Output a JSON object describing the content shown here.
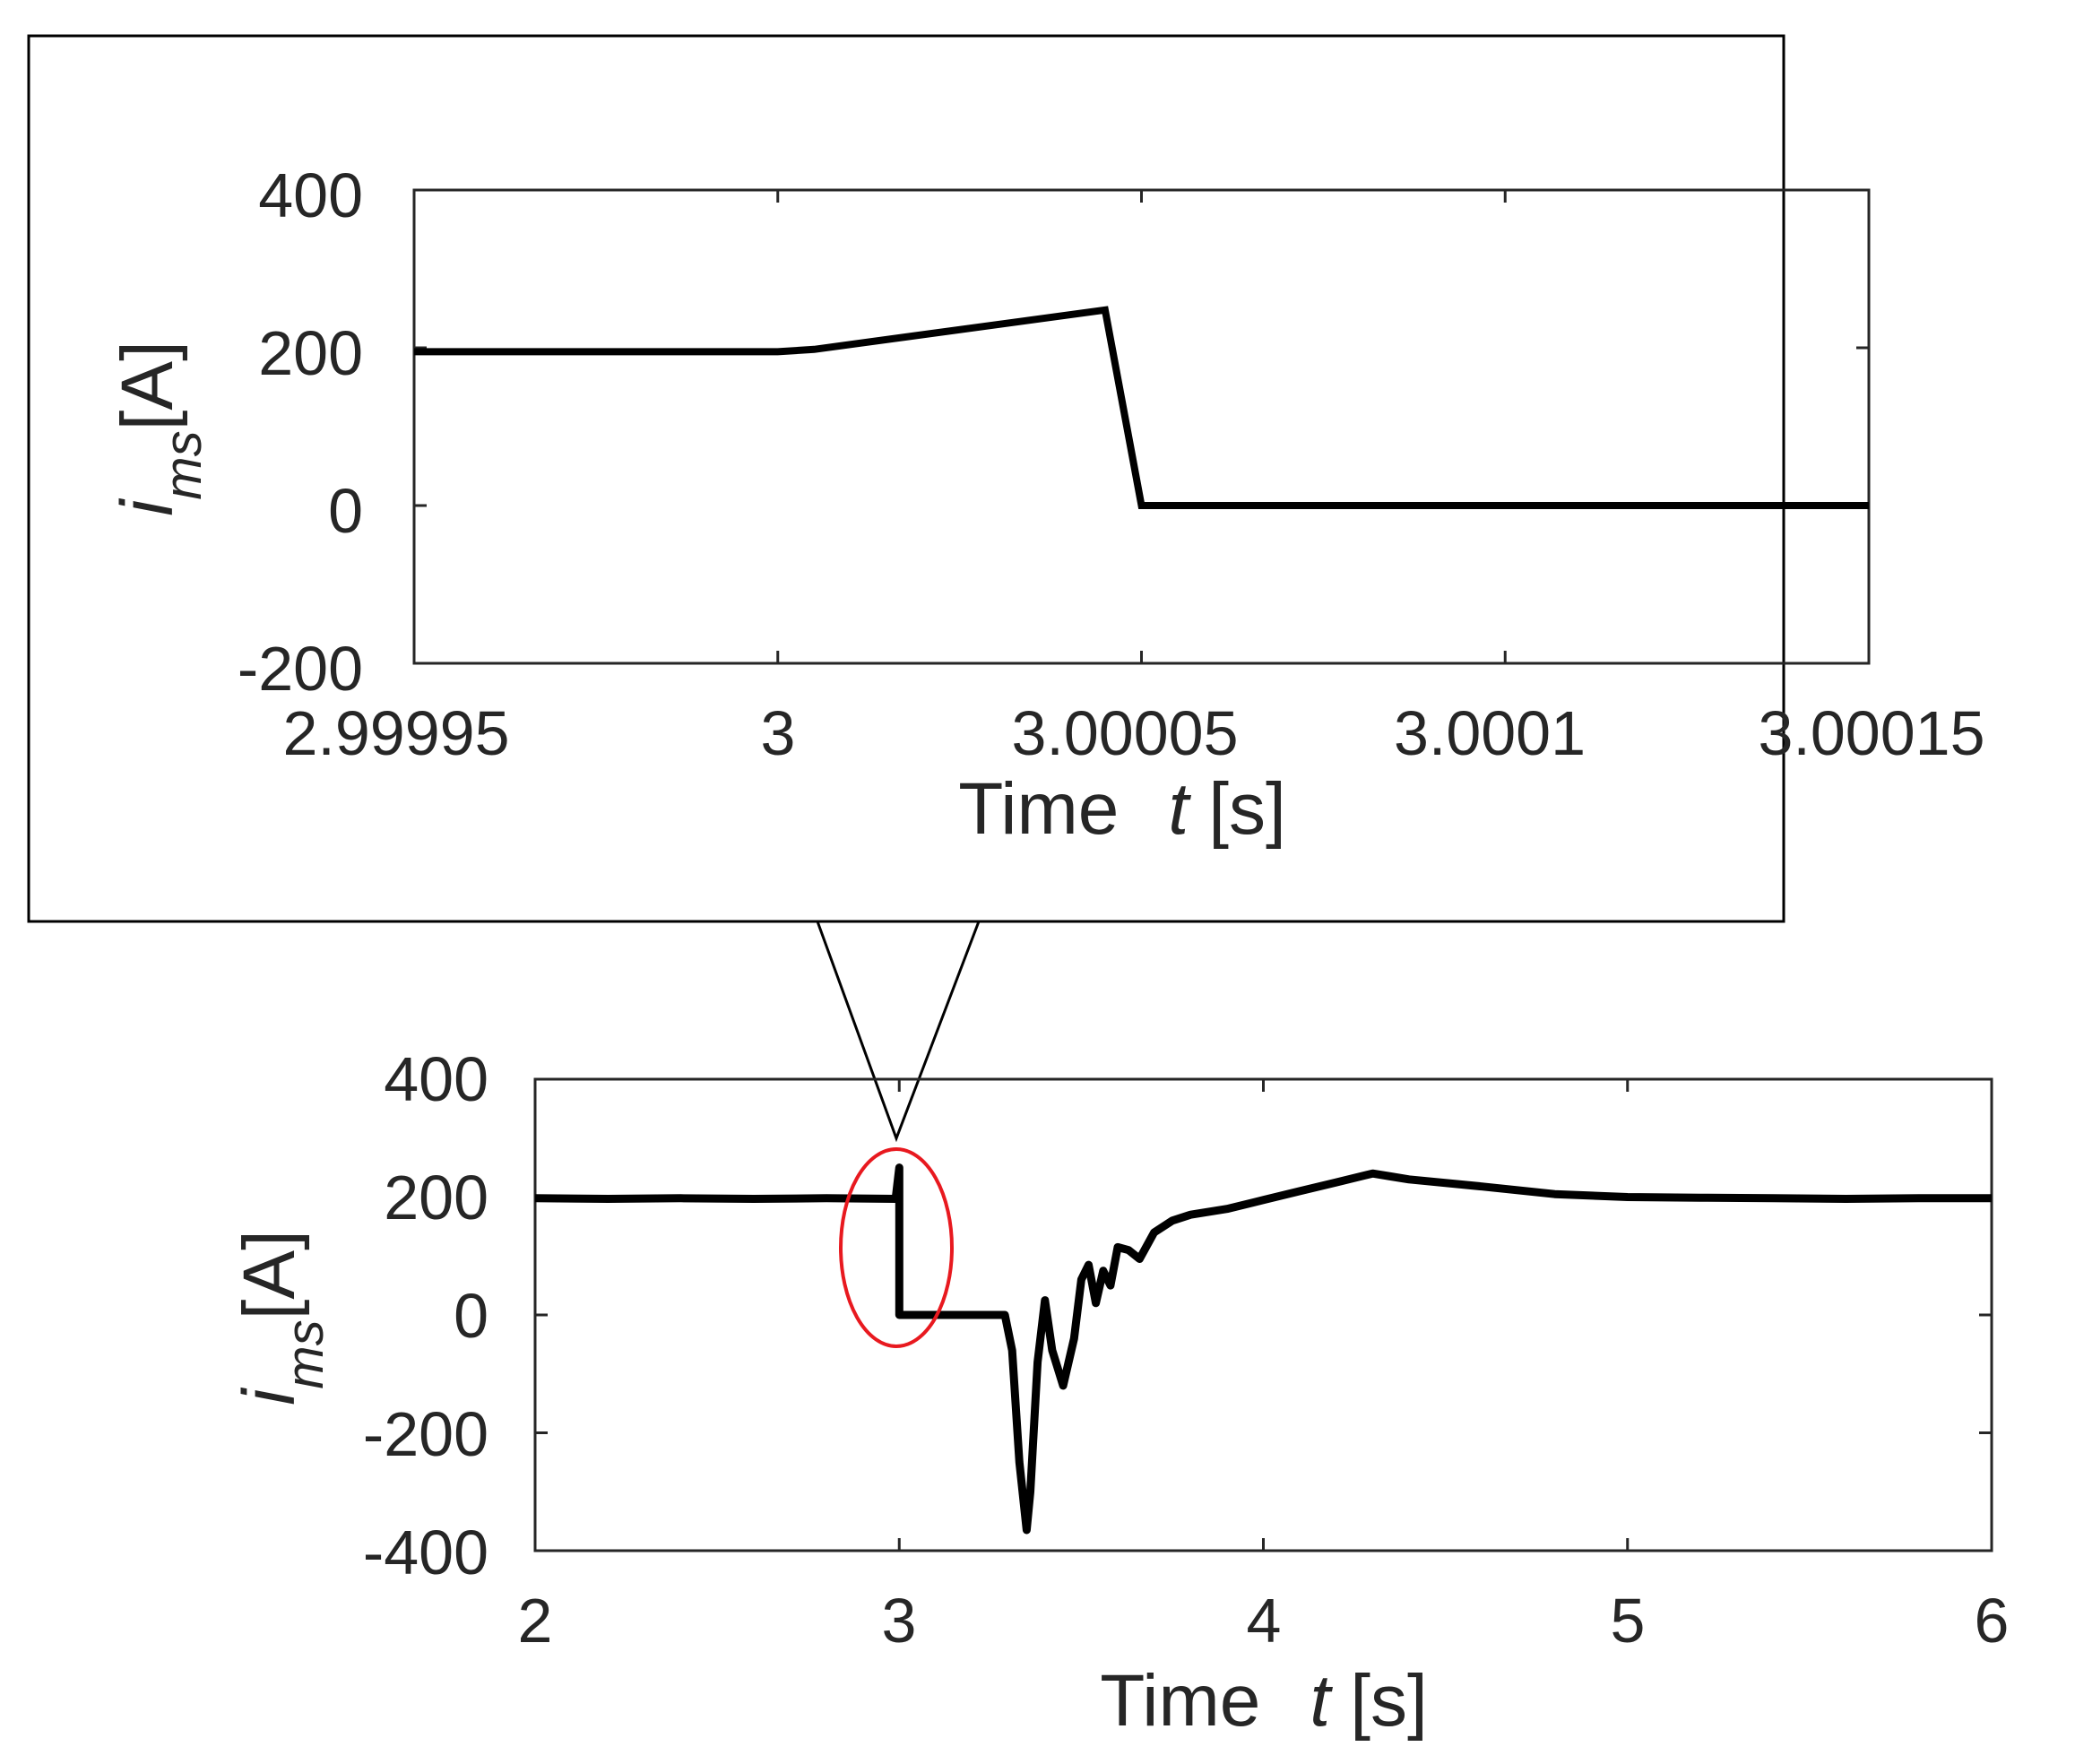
{
  "colors": {
    "trace": "#000000",
    "axes": "#262626",
    "highlight_ellipse": "#e8191f",
    "callout": "#000000",
    "background": "#ffffff"
  },
  "chart_data": [
    {
      "panel": "zoom-inset",
      "type": "line",
      "xlim": [
        2.99995,
        3.00015
      ],
      "ylim": [
        -200,
        400
      ],
      "xticks": [
        "2.99995",
        "3",
        "3.00005",
        "3.0001",
        "3.00015"
      ],
      "yticks": [
        "400",
        "200",
        "0",
        "-200"
      ],
      "xlabel": "Time",
      "xlabel_var": "t",
      "xlabel_unit": "[s]",
      "ylabel_main": "i",
      "ylabel_sub": "ms",
      "ylabel_unit": "[A]",
      "grid": false,
      "series": [
        {
          "x": [
            2.99995,
            3.0,
            3.000005,
            3.000045,
            3.00005,
            3.0001,
            3.00015
          ],
          "y": [
            195,
            195,
            198,
            248,
            0,
            0,
            0
          ]
        }
      ]
    },
    {
      "panel": "main",
      "type": "line",
      "xlim": [
        2,
        6
      ],
      "ylim": [
        -400,
        400
      ],
      "xticks": [
        "2",
        "3",
        "4",
        "5",
        "6"
      ],
      "yticks": [
        "400",
        "200",
        "0",
        "-200",
        "-400"
      ],
      "xlabel": "Time",
      "xlabel_var": "t",
      "xlabel_unit": "[s]",
      "ylabel_main": "i",
      "ylabel_sub": "ms",
      "ylabel_unit": "[A]",
      "grid": false,
      "highlight": {
        "x": 3.0,
        "y": 70,
        "shape": "ellipse"
      },
      "series": [
        {
          "x": [
            2.0,
            2.2,
            2.4,
            2.6,
            2.8,
            2.99,
            3.0,
            3.0,
            3.0,
            3.1,
            3.2,
            3.29,
            3.31,
            3.33,
            3.35,
            3.36,
            3.38,
            3.4,
            3.42,
            3.45,
            3.48,
            3.5,
            3.52,
            3.54,
            3.56,
            3.58,
            3.6,
            3.63,
            3.66,
            3.7,
            3.75,
            3.8,
            3.9,
            4.0,
            4.1,
            4.2,
            4.3,
            4.35,
            4.4,
            4.6,
            4.8,
            5.0,
            5.2,
            5.4,
            5.6,
            5.8,
            6.0
          ],
          "y": [
            198,
            197,
            198,
            197,
            198,
            197,
            250,
            0,
            0,
            0,
            0,
            0,
            -60,
            -250,
            -365,
            -300,
            -80,
            25,
            -60,
            -120,
            -40,
            60,
            85,
            20,
            75,
            50,
            115,
            110,
            95,
            140,
            160,
            170,
            180,
            195,
            210,
            225,
            240,
            235,
            230,
            218,
            205,
            200,
            199,
            198,
            197,
            198,
            198
          ]
        }
      ]
    }
  ]
}
